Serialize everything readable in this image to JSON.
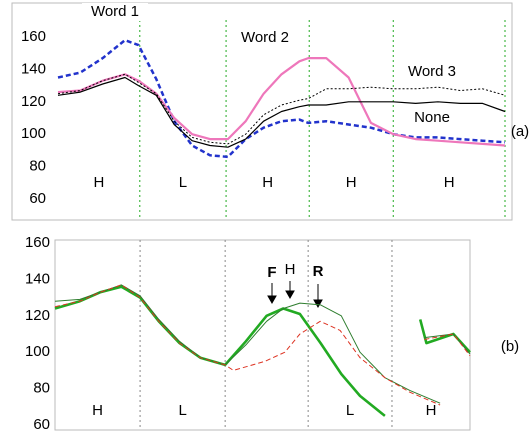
{
  "chart_data": [
    {
      "type": "line",
      "panel_label": "(a)",
      "xlim": [
        0,
        100
      ],
      "ylim": [
        60,
        160
      ],
      "yticks": [
        60,
        80,
        100,
        120,
        140,
        160
      ],
      "dividers": [
        18.3,
        37.6,
        56.2,
        75,
        100
      ],
      "divider_color": "#22aa22",
      "segment_labels": [
        "H",
        "L",
        "H",
        "H",
        "H"
      ],
      "x": [
        0,
        5,
        10,
        15,
        18,
        22,
        26,
        30,
        34,
        38,
        42,
        46,
        50,
        54,
        56,
        60,
        65,
        70,
        75,
        80,
        85,
        90,
        95,
        100
      ],
      "series": [
        {
          "name": "Word 1",
          "color": "#2233cc",
          "linestyle": "dashed",
          "values": [
            135,
            138,
            147,
            158,
            155,
            134,
            108,
            93,
            87,
            86,
            97,
            104,
            108,
            109,
            107,
            108,
            106,
            104,
            100,
            98,
            98,
            97,
            96,
            95
          ]
        },
        {
          "name": "Word 2",
          "color": "#ee77bb",
          "linestyle": "solid",
          "values": [
            126,
            127,
            133,
            137,
            133,
            125,
            110,
            100,
            97,
            97,
            108,
            125,
            137,
            145,
            147,
            147,
            135,
            107,
            100,
            97,
            96,
            95,
            94,
            93
          ]
        },
        {
          "name": "Word 3",
          "color": "#000000",
          "linestyle": "dotted",
          "values": [
            125,
            127,
            133,
            137,
            132,
            125,
            108,
            98,
            95,
            94,
            100,
            112,
            118,
            121,
            122,
            128,
            128,
            129,
            128,
            128,
            129,
            127,
            128,
            124
          ]
        },
        {
          "name": "None",
          "color": "#000000",
          "linestyle": "solid",
          "values": [
            124,
            126,
            131,
            135,
            130,
            124,
            106,
            96,
            93,
            92,
            97,
            108,
            114,
            117,
            118,
            118,
            120,
            120,
            120,
            119,
            120,
            119,
            119,
            114
          ]
        }
      ]
    },
    {
      "type": "line",
      "panel_label": "(b)",
      "xlim": [
        0,
        100
      ],
      "ylim": [
        60,
        160
      ],
      "yticks": [
        60,
        80,
        100,
        120,
        140,
        160
      ],
      "dividers": [
        20.5,
        41,
        61,
        81.2
      ],
      "divider_color": "#888888",
      "segment_labels": [
        "H",
        "L",
        null,
        "L",
        "H"
      ],
      "series": [
        {
          "name": "F",
          "color": "#22aa22",
          "linestyle": "solid",
          "x": [
            0,
            6,
            11,
            16,
            20.5,
            25,
            30,
            35,
            41,
            46,
            51,
            55,
            59,
            64,
            69,
            73.5,
            79.5,
            null,
            88,
            89.5,
            96,
            100
          ],
          "values": [
            124,
            128,
            133,
            136,
            130,
            117,
            105,
            97,
            93,
            106,
            120,
            124,
            121,
            105,
            88,
            76,
            65,
            null,
            118,
            105,
            110,
            100
          ]
        },
        {
          "name": "H",
          "color": "#2e7d2e",
          "linestyle": "solid",
          "x": [
            0,
            6,
            11,
            16,
            20.5,
            25,
            30,
            35,
            41,
            46,
            51,
            55,
            59,
            64,
            69,
            73.5,
            79.5,
            85.5,
            92.8,
            null,
            89,
            96,
            100
          ],
          "values": [
            128,
            129,
            133,
            137,
            131,
            118,
            106,
            97,
            93,
            104,
            117,
            124,
            127,
            126,
            120,
            100,
            86,
            79,
            72,
            null,
            108,
            110,
            99
          ]
        },
        {
          "name": "R",
          "color": "#dd3322",
          "linestyle": "dashed",
          "x": [
            0,
            6,
            11,
            16,
            20.5,
            25,
            30,
            35,
            41,
            43,
            50.6,
            55.4,
            59,
            63.9,
            68.7,
            73.5,
            79.5,
            85.5,
            92.8,
            null,
            89,
            96,
            100
          ],
          "values": [
            125,
            128,
            133,
            137,
            130,
            117,
            105,
            97,
            93,
            90,
            95,
            100,
            110,
            117,
            112,
            97,
            86,
            78,
            71,
            null,
            107,
            110,
            98
          ]
        }
      ]
    }
  ]
}
